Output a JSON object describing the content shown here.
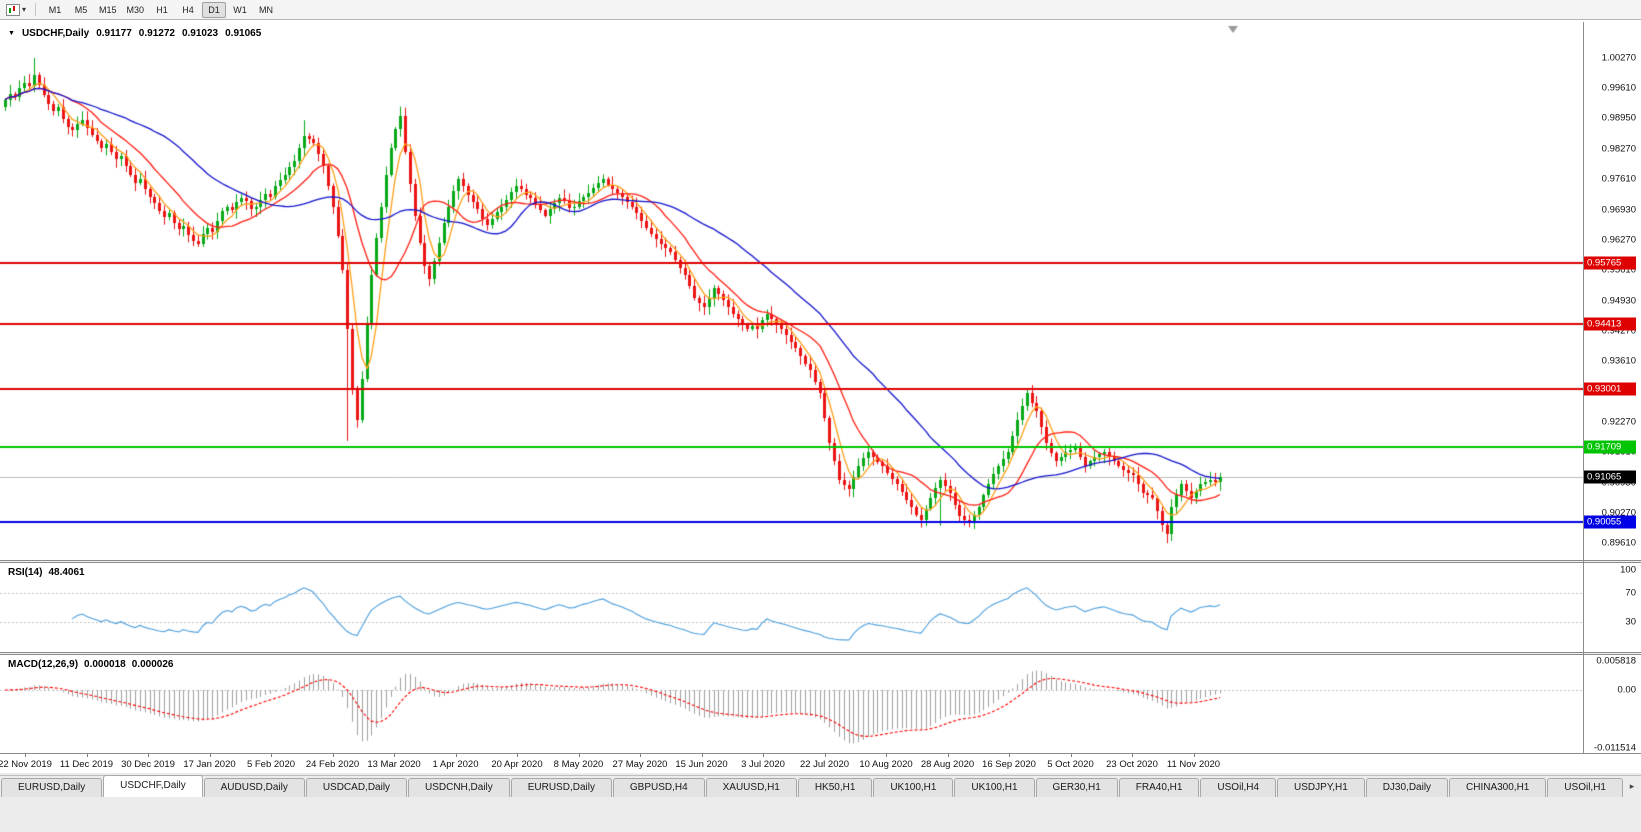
{
  "toolbar": {
    "timeframes": [
      "M1",
      "M5",
      "M15",
      "M30",
      "H1",
      "H4",
      "D1",
      "W1",
      "MN"
    ],
    "active_timeframe": "D1",
    "icons": [
      "chart-window-icon",
      "dropdown-caret-icon"
    ]
  },
  "chart": {
    "symbol_period": "USDCHF,Daily",
    "ohlc": {
      "open": "0.91177",
      "high": "0.91272",
      "low": "0.91023",
      "close": "0.91065"
    },
    "price_axis": {
      "max": 1.0106,
      "min": 0.8923,
      "labels": [
        "1.00270",
        "0.99610",
        "0.98950",
        "0.98270",
        "0.97610",
        "0.96930",
        "0.96270",
        "0.95610",
        "0.94930",
        "0.94270",
        "0.93610",
        "0.92930",
        "0.92270",
        "0.91610",
        "0.90930",
        "0.90270",
        "0.89610"
      ]
    },
    "hlines": [
      {
        "value": 0.95765,
        "label": "0.95765",
        "color": "#DE0202"
      },
      {
        "value": 0.94413,
        "label": "0.94413",
        "color": "#DE0202"
      },
      {
        "value": 0.93001,
        "label": "0.93001",
        "color": "#DE0202"
      },
      {
        "value": 0.91709,
        "label": "0.91709",
        "color": "#00C400"
      },
      {
        "value": 0.90055,
        "label": "0.90055",
        "color": "#0000E6"
      }
    ],
    "current_price": {
      "value": 0.91065,
      "label": "0.91065",
      "badge_color": "#000000"
    },
    "dates": [
      "22 Nov 2019",
      "11 Dec 2019",
      "30 Dec 2019",
      "17 Jan 2020",
      "5 Feb 2020",
      "24 Feb 2020",
      "13 Mar 2020",
      "1 Apr 2020",
      "20 Apr 2020",
      "8 May 2020",
      "27 May 2020",
      "15 Jun 2020",
      "3 Jul 2020",
      "22 Jul 2020",
      "10 Aug 2020",
      "28 Aug 2020",
      "16 Sep 2020",
      "5 Oct 2020",
      "23 Oct 2020",
      "11 Nov 2020"
    ],
    "colors": {
      "up": "#08A919",
      "down": "#EB1414",
      "current_line": "#bdbdbd"
    },
    "moving_averages": [
      {
        "period": 5,
        "color": "#FF9F1A"
      },
      {
        "period": 13,
        "color": "#FF2015"
      },
      {
        "period": 34,
        "color": "#1414CC"
      }
    ],
    "candles": {
      "first_open": 0.992,
      "closes": [
        0.9935,
        0.9948,
        0.9942,
        0.996,
        0.9972,
        0.9965,
        0.999,
        0.9968,
        0.9945,
        0.9925,
        0.991,
        0.9918,
        0.9892,
        0.9875,
        0.9868,
        0.9882,
        0.989,
        0.9872,
        0.9858,
        0.9845,
        0.983,
        0.9838,
        0.982,
        0.9805,
        0.9812,
        0.979,
        0.977,
        0.9752,
        0.976,
        0.9738,
        0.9722,
        0.9708,
        0.969,
        0.9678,
        0.9685,
        0.9665,
        0.965,
        0.9658,
        0.9638,
        0.9625,
        0.9618,
        0.964,
        0.9652,
        0.9645,
        0.9668,
        0.969,
        0.97,
        0.9692,
        0.971,
        0.972,
        0.9712,
        0.9695,
        0.97,
        0.9715,
        0.9728,
        0.9722,
        0.9745,
        0.9758,
        0.977,
        0.9788,
        0.98,
        0.9828,
        0.9855,
        0.9848,
        0.984,
        0.9815,
        0.979,
        0.9745,
        0.97,
        0.9635,
        0.956,
        0.943,
        0.93,
        0.923,
        0.932,
        0.944,
        0.955,
        0.963,
        0.97,
        0.977,
        0.983,
        0.987,
        0.99,
        0.982,
        0.975,
        0.968,
        0.962,
        0.957,
        0.954,
        0.958,
        0.962,
        0.9665,
        0.97,
        0.9735,
        0.976,
        0.9745,
        0.9725,
        0.971,
        0.9695,
        0.9672,
        0.966,
        0.9672,
        0.9688,
        0.97,
        0.9715,
        0.9732,
        0.9745,
        0.9738,
        0.9725,
        0.972,
        0.9705,
        0.9692,
        0.968,
        0.9695,
        0.9708,
        0.972,
        0.9712,
        0.9698,
        0.97,
        0.9712,
        0.9722,
        0.973,
        0.9742,
        0.9752,
        0.976,
        0.9748,
        0.9738,
        0.973,
        0.9722,
        0.971,
        0.97,
        0.9685,
        0.9668,
        0.9652,
        0.964,
        0.9628,
        0.9618,
        0.9608,
        0.96,
        0.9582,
        0.9565,
        0.955,
        0.9525,
        0.95,
        0.9488,
        0.948,
        0.95,
        0.952,
        0.9508,
        0.9495,
        0.948,
        0.9465,
        0.9452,
        0.944,
        0.9432,
        0.9438,
        0.943,
        0.945,
        0.9465,
        0.9452,
        0.944,
        0.943,
        0.9418,
        0.9402,
        0.939,
        0.9372,
        0.9355,
        0.934,
        0.9315,
        0.929,
        0.9235,
        0.918,
        0.914,
        0.91,
        0.9088,
        0.908,
        0.9105,
        0.913,
        0.9148,
        0.916,
        0.915,
        0.9138,
        0.913,
        0.9115,
        0.9102,
        0.909,
        0.9072,
        0.9055,
        0.904,
        0.9022,
        0.901,
        0.9035,
        0.906,
        0.9082,
        0.91,
        0.9085,
        0.907,
        0.9045,
        0.902,
        0.901,
        0.9005,
        0.9022,
        0.904,
        0.9065,
        0.909,
        0.9112,
        0.913,
        0.9145,
        0.916,
        0.9195,
        0.923,
        0.9262,
        0.929,
        0.9268,
        0.925,
        0.9215,
        0.918,
        0.9158,
        0.914,
        0.915,
        0.916,
        0.9165,
        0.917,
        0.915,
        0.913,
        0.914,
        0.915,
        0.9155,
        0.916,
        0.915,
        0.914,
        0.913,
        0.912,
        0.9115,
        0.911,
        0.909,
        0.907,
        0.9065,
        0.906,
        0.903,
        0.9,
        0.898,
        0.904,
        0.9065,
        0.909,
        0.9075,
        0.906,
        0.9075,
        0.909,
        0.9095,
        0.91,
        0.9095,
        0.91065
      ],
      "overrides": [
        {
          "i": 6,
          "high": 1.0027
        },
        {
          "i": 39,
          "low": 0.9613
        },
        {
          "i": 62,
          "high": 0.989
        },
        {
          "i": 71,
          "low": 0.9185
        },
        {
          "i": 82,
          "high": 0.992
        },
        {
          "i": 194,
          "low": 0.8998
        },
        {
          "i": 200,
          "low": 0.8995
        },
        {
          "i": 212,
          "high": 0.9298
        },
        {
          "i": 241,
          "low": 0.896
        }
      ]
    }
  },
  "rsi": {
    "name": "RSI(14)",
    "value": "48.4061",
    "period": 14,
    "color": "#4C9EDC",
    "levels": [
      {
        "label": "100",
        "value": 100
      },
      {
        "label": "70",
        "value": 70
      },
      {
        "label": "30",
        "value": 30
      }
    ]
  },
  "macd": {
    "name": "MACD(12,26,9)",
    "values": [
      "0.000018",
      "0.000026"
    ],
    "fast": 12,
    "slow": 26,
    "signal": 9,
    "histogram_color": "#9f9f9f",
    "signal_color": "#FF0000",
    "scale_max": 0.007,
    "scale_min": -0.0126,
    "axis": [
      {
        "label": "0.005818",
        "value": 0.005818
      },
      {
        "label": "0.00",
        "value": 0
      },
      {
        "label": "-0.011514",
        "value": -0.011514
      }
    ]
  },
  "tabs": {
    "active_index": 1,
    "items": [
      "EURUSD,Daily",
      "USDCHF,Daily",
      "AUDUSD,Daily",
      "USDCAD,Daily",
      "USDCNH,Daily",
      "EURUSD,Daily",
      "GBPUSD,H4",
      "XAUUSD,H1",
      "HK50,H1",
      "UK100,H1",
      "UK100,H1",
      "GER30,H1",
      "FRA40,H1",
      "USOil,H4",
      "USDJPY,H1",
      "DJ30,Daily",
      "CHINA300,H1",
      "USOil,H1"
    ],
    "scroll_arrow": "▸"
  }
}
